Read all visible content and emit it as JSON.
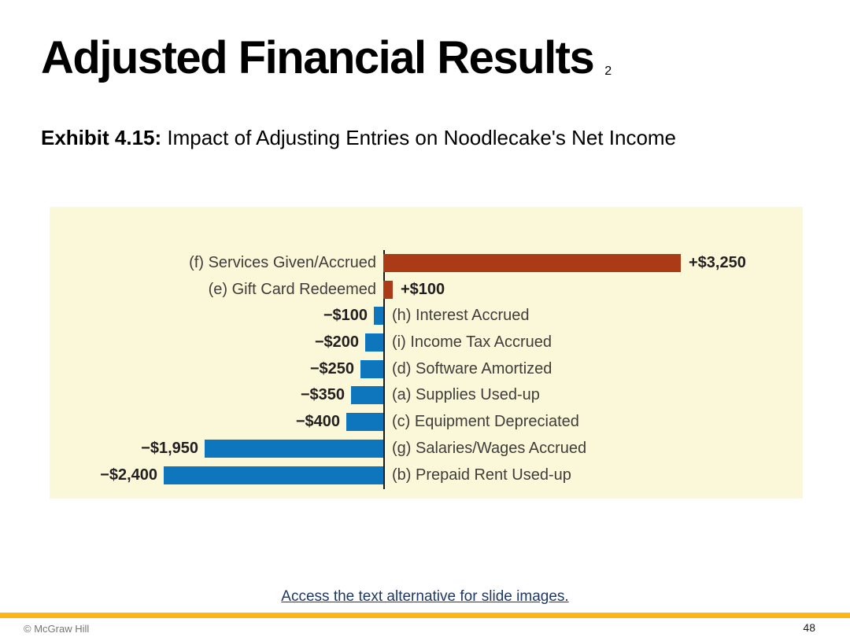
{
  "slide": {
    "title": "Adjusted Financial Results",
    "title_note": "2",
    "exhibit_label": "Exhibit 4.15:",
    "exhibit_text": " Impact of Adjusting Entries on Noodlecake's Net Income",
    "footer": {
      "link_text": "Access the text alternative for slide images.",
      "copyright": "© McGraw Hill",
      "page_number": "48"
    }
  },
  "chart_data": {
    "type": "bar",
    "orientation": "horizontal",
    "title": "Impact of Adjusting Entries on Noodlecake's Net Income",
    "unit": "USD",
    "rows": [
      {
        "label": "(f) Services Given/Accrued",
        "value": 3250,
        "value_label": "+$3,250"
      },
      {
        "label": "(e) Gift Card Redeemed",
        "value": 100,
        "value_label": "+$100"
      },
      {
        "label": "(h) Interest Accrued",
        "value": -100,
        "value_label": "−$100"
      },
      {
        "label": "(i) Income Tax Accrued",
        "value": -200,
        "value_label": "−$200"
      },
      {
        "label": "(d) Software Amortized",
        "value": -250,
        "value_label": "−$250"
      },
      {
        "label": "(a) Supplies Used-up",
        "value": -350,
        "value_label": "−$350"
      },
      {
        "label": "(c) Equipment Depreciated",
        "value": -400,
        "value_label": "−$400"
      },
      {
        "label": "(g) Salaries/Wages Accrued",
        "value": -1950,
        "value_label": "−$1,950"
      },
      {
        "label": "(b) Prepaid Rent Used-up",
        "value": -2400,
        "value_label": "−$2,400"
      }
    ],
    "colors": {
      "positive_bar": "#ab3a17",
      "negative_bar": "#0e76bc",
      "panel_background": "#fbf8da",
      "axis": "#1a1a1a"
    },
    "xlim": [
      -2600,
      3400
    ],
    "axis_position": "zero",
    "grid": false,
    "legend": false
  },
  "theme": {
    "accent_gold": "#fdb714",
    "link_color": "#1f3864",
    "text_dark": "#231f20",
    "text_gray": "#767676"
  }
}
